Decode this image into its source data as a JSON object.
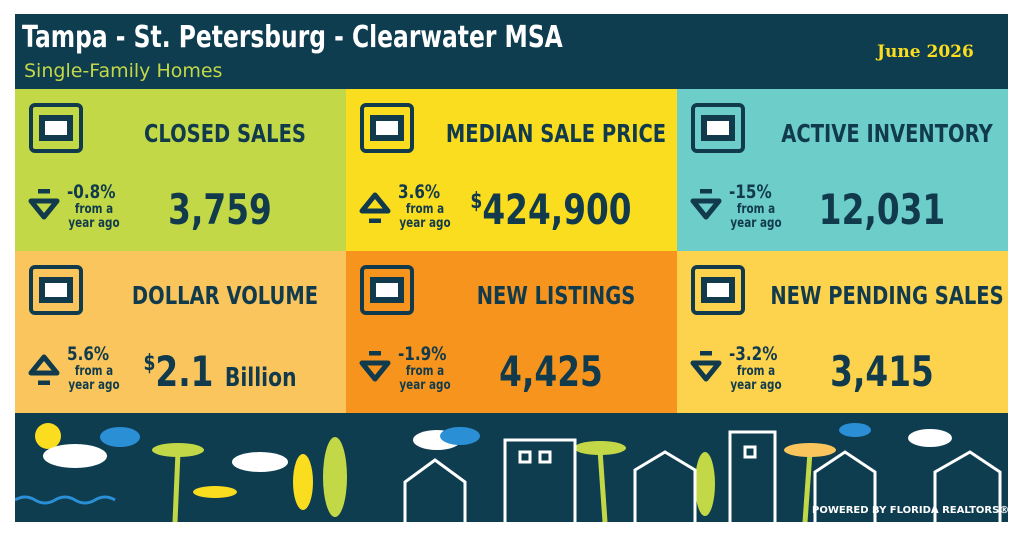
{
  "header": {
    "title": "Tampa - St. Petersburg - Clearwater MSA",
    "subtitle": "Single-Family Homes",
    "date": "June 2026"
  },
  "tiles": [
    {
      "title": "CLOSED SALES",
      "change": "-0.8%",
      "change_note": [
        "from a",
        "year ago"
      ],
      "value": "3,759",
      "color": "#c3d846"
    },
    {
      "title": "MEDIAN SALE PRICE",
      "change": "3.6%",
      "change_note": [
        "from a",
        "year ago"
      ],
      "prefix": "$",
      "value": "424,900",
      "color": "#fbdd1f"
    },
    {
      "title": "ACTIVE INVENTORY",
      "change": "-15%",
      "change_note": [
        "from a",
        "year ago"
      ],
      "value": "12,031",
      "color": "#6dcdc9"
    },
    {
      "title": "DOLLAR VOLUME",
      "change": "5.6%",
      "change_note": [
        "from a",
        "year ago"
      ],
      "prefix": "$",
      "value": "2.1",
      "unit": "Billion",
      "color": "#f9c55c"
    },
    {
      "title": "NEW LISTINGS",
      "change": "-1.9%",
      "change_note": [
        "from a",
        "year ago"
      ],
      "value": "4,425",
      "color": "#f7941d"
    },
    {
      "title": "NEW PENDING SALES",
      "change": "-3.2%",
      "change_note": [
        "from a",
        "year ago"
      ],
      "value": "3,415",
      "color": "#fdd34e"
    }
  ],
  "footer": "POWERED BY FLORIDA REALTORS®"
}
